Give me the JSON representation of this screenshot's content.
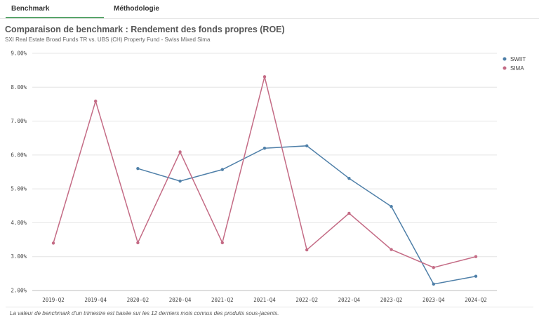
{
  "tabs": [
    {
      "label": "Benchmark",
      "active": true
    },
    {
      "label": "Méthodologie",
      "active": false
    }
  ],
  "footer": "La valeur de benchmark d'un trimestre est basée sur les 12 derniers mois connus des produits sous-jacents.",
  "chart_data": {
    "type": "line",
    "title": "Comparaison de benchmark : Rendement des fonds propres (ROE)",
    "subtitle": "SXI Real Estate Broad Funds TR vs. UBS (CH) Property Fund - Swiss Mixed Sima",
    "xlabel": "",
    "ylabel": "",
    "categories": [
      "2019-Q2",
      "2019-Q4",
      "2020-Q2",
      "2020-Q4",
      "2021-Q2",
      "2021-Q4",
      "2022-Q2",
      "2022-Q4",
      "2023-Q2",
      "2023-Q4",
      "2024-Q2"
    ],
    "y_ticks": [
      "2.00%",
      "3.00%",
      "4.00%",
      "5.00%",
      "6.00%",
      "7.00%",
      "8.00%",
      "9.00%"
    ],
    "ylim": [
      2,
      9
    ],
    "grid": true,
    "legend_position": "top-right",
    "series": [
      {
        "name": "SWIIT",
        "color": "#4e7fa8",
        "values": [
          null,
          null,
          5.6,
          5.23,
          5.57,
          6.2,
          6.27,
          5.31,
          4.48,
          2.19,
          2.42
        ]
      },
      {
        "name": "SIMA",
        "color": "#c46b85",
        "values": [
          3.4,
          7.59,
          3.41,
          6.09,
          3.41,
          8.31,
          3.2,
          4.28,
          3.21,
          2.68,
          3.0
        ]
      }
    ]
  }
}
